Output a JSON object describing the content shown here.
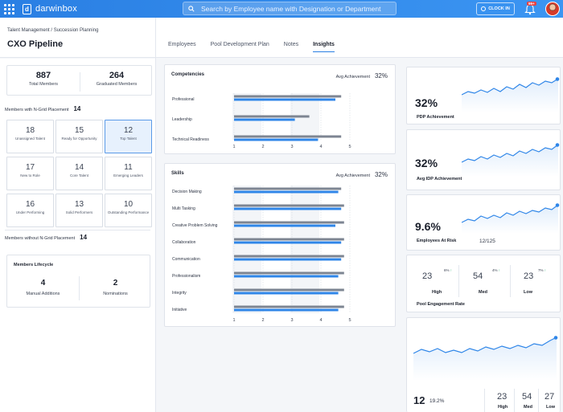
{
  "topbar": {
    "brand": "darwinbox",
    "search_placeholder": "Search by Employee name with Designation or Department",
    "clock_in": "CLOCK IN",
    "notification_badge": "99+"
  },
  "header": {
    "breadcrumb": "Talent Management  /  Succession Planning",
    "title": "CXO Pipeline",
    "tabs": [
      {
        "label": "Employees",
        "active": false
      },
      {
        "label": "Pool Development Plan",
        "active": false
      },
      {
        "label": "Notes",
        "active": false
      },
      {
        "label": "Insights",
        "active": true
      }
    ]
  },
  "left": {
    "total_members": {
      "value": "887",
      "label": "Total Members"
    },
    "graduated_members": {
      "value": "264",
      "label": "Graduated Members"
    },
    "ngrid_label": "Members with N-Grid Placement",
    "ngrid_count": "14",
    "ngrid": [
      {
        "value": "18",
        "label": "Unassigned Talent"
      },
      {
        "value": "15",
        "label": "Ready for Opportunity"
      },
      {
        "value": "12",
        "label": "Top Talent"
      },
      {
        "value": "17",
        "label": "New to Role"
      },
      {
        "value": "14",
        "label": "Core Talent"
      },
      {
        "value": "11",
        "label": "Emerging Leaders"
      },
      {
        "value": "16",
        "label": "Under Performing"
      },
      {
        "value": "13",
        "label": "Solid Performers"
      },
      {
        "value": "10",
        "label": "Outstanding Performance"
      }
    ],
    "without_label": "Members without N-Grid Placement",
    "without_count": "14",
    "lifecycle": {
      "title": "Members Lifecycle",
      "manual": {
        "value": "4",
        "label": "Manual Additions"
      },
      "nominations": {
        "value": "2",
        "label": "Nominations"
      }
    }
  },
  "competencies": {
    "title": "Competencies",
    "avg_label": "Avg Achievement",
    "avg_value": "32%",
    "axis": [
      "1",
      "2",
      "3",
      "4",
      "5"
    ],
    "rows": [
      {
        "label": "Professional",
        "grey": 4.7,
        "blue": 4.5
      },
      {
        "label": "Leadership",
        "grey": 3.6,
        "blue": 3.1
      },
      {
        "label": "Technical Readiness",
        "grey": 4.7,
        "blue": 3.9
      }
    ]
  },
  "skills": {
    "title": "Skills",
    "avg_label": "Avg Achievement",
    "avg_value": "32%",
    "axis": [
      "1",
      "2",
      "3",
      "4",
      "5"
    ],
    "rows": [
      {
        "label": "Decision Making",
        "grey": 4.7,
        "blue": 4.6
      },
      {
        "label": "Multi Tasking",
        "grey": 4.8,
        "blue": 4.7
      },
      {
        "label": "Creative Problem Solving",
        "grey": 4.8,
        "blue": 4.5
      },
      {
        "label": "Collaboration",
        "grey": 4.8,
        "blue": 4.7
      },
      {
        "label": "Communication",
        "grey": 4.8,
        "blue": 4.7
      },
      {
        "label": "Professionalism",
        "grey": 4.8,
        "blue": 4.6
      },
      {
        "label": "Integrity",
        "grey": 4.8,
        "blue": 4.6
      },
      {
        "label": "Initiative",
        "grey": 4.8,
        "blue": 4.6
      }
    ]
  },
  "right": {
    "pdp": {
      "value": "32%",
      "label": "PDP Achievement"
    },
    "idp": {
      "value": "32%",
      "label": "Avg IDP Achievement"
    },
    "risk": {
      "value": "9.6%",
      "label": "Employees At Risk",
      "extra": "12/125"
    },
    "engagement": {
      "label": "Pool Engagement Rate",
      "items": [
        {
          "value": "23",
          "label": "High",
          "delta": "6%"
        },
        {
          "value": "54",
          "label": "Med",
          "delta": "4%"
        },
        {
          "value": "23",
          "label": "Low",
          "delta": "7%"
        }
      ]
    },
    "bottom": {
      "value": "12",
      "secondary": "19.2%",
      "items": [
        "23",
        "54",
        "27"
      ],
      "item_labels": [
        "High",
        "Med",
        "Low"
      ]
    }
  },
  "colors": {
    "accent": "#2a7fe3",
    "bar_grey": "#7d8592",
    "bar_blue": "#2f86e8",
    "up": "#2bb673"
  }
}
